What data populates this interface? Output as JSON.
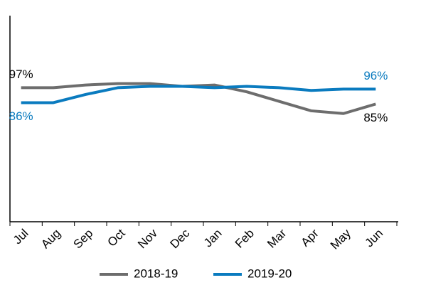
{
  "chart_data": {
    "type": "line",
    "categories": [
      "Jul",
      "Aug",
      "Sep",
      "Oct",
      "Nov",
      "Dec",
      "Jan",
      "Feb",
      "Mar",
      "Apr",
      "May",
      "Jun"
    ],
    "series": [
      {
        "name": "2018-19",
        "color": "#6d6d6d",
        "values": [
          97,
          97,
          99,
          100,
          100,
          98,
          99,
          94,
          87,
          80,
          78,
          85
        ],
        "value_labels": [
          "97%",
          null,
          null,
          null,
          null,
          null,
          null,
          null,
          null,
          null,
          null,
          "85%"
        ]
      },
      {
        "name": "2019-20",
        "color": "#0a7bbf",
        "values": [
          86,
          86,
          92,
          97,
          98,
          98,
          97,
          98,
          97,
          95,
          96,
          96
        ],
        "value_labels": [
          "86%",
          null,
          null,
          null,
          null,
          null,
          null,
          null,
          null,
          null,
          null,
          "96%"
        ]
      }
    ],
    "ylim": [
      0,
      150
    ]
  }
}
